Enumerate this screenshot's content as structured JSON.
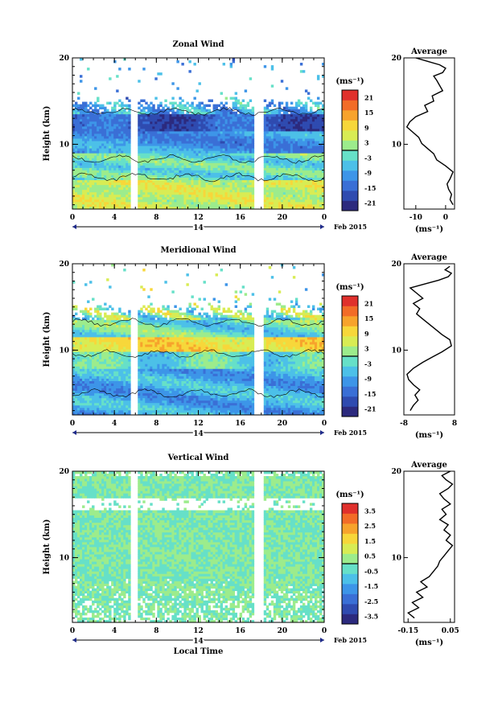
{
  "chart_data": [
    {
      "type": "heatmap",
      "title": "Zonal Wind",
      "xlabel": "",
      "ylabel": "Height (km)",
      "x_ticks": [
        "0",
        "4",
        "8",
        "12",
        "16",
        "20",
        "0"
      ],
      "y_ticks": [
        "10",
        "20"
      ],
      "ylim": [
        2.5,
        20
      ],
      "date_label": "14",
      "month_label": "Feb 2015",
      "colorbar": {
        "unit": "(ms⁻¹)",
        "ticks": [
          "21",
          "15",
          "9",
          "3",
          "-3",
          "-9",
          "-15",
          "-21"
        ],
        "range": [
          -24,
          24
        ],
        "colors": [
          "#2c2a7e",
          "#2f4bb0",
          "#3a6fd6",
          "#3d95e8",
          "#4cc0e8",
          "#66e0c8",
          "#9cec8c",
          "#d8ec54",
          "#f7d73a",
          "#f7a32c",
          "#f26c28",
          "#e0302c"
        ]
      },
      "average": {
        "title": "Average",
        "xlabel": "(ms⁻¹)",
        "x_ticks": [
          "-10",
          "0"
        ],
        "xlim": [
          -14,
          3
        ],
        "y_ticks": [
          "10",
          "20"
        ],
        "x": [
          2.5,
          1.5,
          2.0,
          1.0,
          0.5,
          1.5,
          2.5,
          0.0,
          -3.0,
          -4.0,
          -6.0,
          -8.0,
          -9.0,
          -11.0,
          -13.0,
          -12.0,
          -10.0,
          -6.0,
          -7.0,
          -4.0,
          -4.5,
          -1.0,
          -2.0,
          -3.0,
          -4.0,
          -1.0,
          0.0,
          -2.0,
          -6.0,
          -10.0
        ],
        "y": [
          3.0,
          3.6,
          4.2,
          4.8,
          5.4,
          6.0,
          6.8,
          7.5,
          8.2,
          8.9,
          9.5,
          10.1,
          10.8,
          11.4,
          12.0,
          12.6,
          13.2,
          13.8,
          14.5,
          15.0,
          15.6,
          16.2,
          16.8,
          17.4,
          17.9,
          18.3,
          18.8,
          19.2,
          19.6,
          20.0
        ]
      }
    },
    {
      "type": "heatmap",
      "title": "Meridional Wind",
      "xlabel": "",
      "ylabel": "Height (km)",
      "x_ticks": [
        "0",
        "4",
        "8",
        "12",
        "16",
        "20",
        "0"
      ],
      "y_ticks": [
        "10",
        "20"
      ],
      "ylim": [
        2.5,
        20
      ],
      "date_label": "14",
      "month_label": "Feb 2015",
      "colorbar": {
        "unit": "(ms⁻¹)",
        "ticks": [
          "21",
          "15",
          "9",
          "3",
          "-3",
          "-9",
          "-15",
          "-21"
        ],
        "range": [
          -24,
          24
        ],
        "colors": [
          "#2c2a7e",
          "#2f4bb0",
          "#3a6fd6",
          "#3d95e8",
          "#4cc0e8",
          "#66e0c8",
          "#9cec8c",
          "#d8ec54",
          "#f7d73a",
          "#f7a32c",
          "#f26c28",
          "#e0302c"
        ]
      },
      "average": {
        "title": "Average",
        "xlabel": "(ms⁻¹)",
        "x_ticks": [
          "-8",
          "8"
        ],
        "xlim": [
          -8,
          8
        ],
        "y_ticks": [
          "10",
          "20"
        ],
        "x": [
          -6.0,
          -5.0,
          -3.5,
          -4.5,
          -3.0,
          -5.0,
          -6.5,
          -7.0,
          -5.0,
          -2.0,
          1.0,
          4.0,
          7.0,
          6.5,
          4.0,
          2.0,
          0.0,
          -2.0,
          -4.0,
          -3.0,
          -5.0,
          -2.0,
          -4.0,
          -6.0,
          -1.0,
          3.0,
          6.0,
          7.0,
          5.0,
          6.5
        ],
        "y": [
          3.0,
          3.6,
          4.2,
          4.8,
          5.4,
          6.0,
          6.6,
          7.2,
          7.9,
          8.6,
          9.2,
          9.8,
          10.5,
          11.2,
          11.8,
          12.4,
          13.0,
          13.6,
          14.2,
          14.8,
          15.4,
          16.0,
          16.6,
          17.2,
          17.7,
          18.1,
          18.5,
          18.9,
          19.3,
          19.7
        ]
      }
    },
    {
      "type": "heatmap",
      "title": "Vertical Wind",
      "xlabel": "Local Time",
      "ylabel": "Height (km)",
      "x_ticks": [
        "0",
        "4",
        "8",
        "12",
        "16",
        "20",
        "0"
      ],
      "y_ticks": [
        "10",
        "20"
      ],
      "ylim": [
        2.5,
        20
      ],
      "date_label": "14",
      "month_label": "Feb 2015",
      "colorbar": {
        "unit": "(ms⁻¹)",
        "ticks": [
          "3.5",
          "2.5",
          "1.5",
          "0.5",
          "-0.5",
          "-1.5",
          "-2.5",
          "-3.5"
        ],
        "range": [
          -4,
          4
        ],
        "colors": [
          "#2c2a7e",
          "#2f4bb0",
          "#3a6fd6",
          "#3d95e8",
          "#4cc0e8",
          "#66e0c8",
          "#9cec8c",
          "#d8ec54",
          "#f7d73a",
          "#f7a32c",
          "#f26c28",
          "#e0302c"
        ]
      },
      "average": {
        "title": "Average",
        "xlabel": "(ms⁻¹)",
        "x_ticks": [
          "-0.15",
          "0.05"
        ],
        "xlim": [
          -0.17,
          0.07
        ],
        "y_ticks": [
          "10",
          "20"
        ],
        "x": [
          -0.12,
          -0.15,
          -0.1,
          -0.13,
          -0.08,
          -0.11,
          -0.06,
          -0.09,
          -0.05,
          -0.03,
          -0.01,
          0.0,
          0.02,
          0.04,
          0.06,
          0.03,
          0.05,
          0.02,
          0.04,
          0.0,
          0.03,
          0.01,
          0.05,
          0.02,
          0.0,
          0.04,
          0.06,
          0.03,
          0.01,
          0.05
        ],
        "y": [
          3.0,
          3.6,
          4.2,
          4.8,
          5.4,
          6.0,
          6.6,
          7.2,
          7.8,
          8.4,
          9.0,
          9.6,
          10.2,
          10.8,
          11.4,
          12.0,
          12.6,
          13.2,
          13.8,
          14.4,
          15.0,
          15.6,
          16.2,
          16.8,
          17.4,
          18.0,
          18.5,
          19.0,
          19.5,
          20.0
        ]
      }
    }
  ]
}
